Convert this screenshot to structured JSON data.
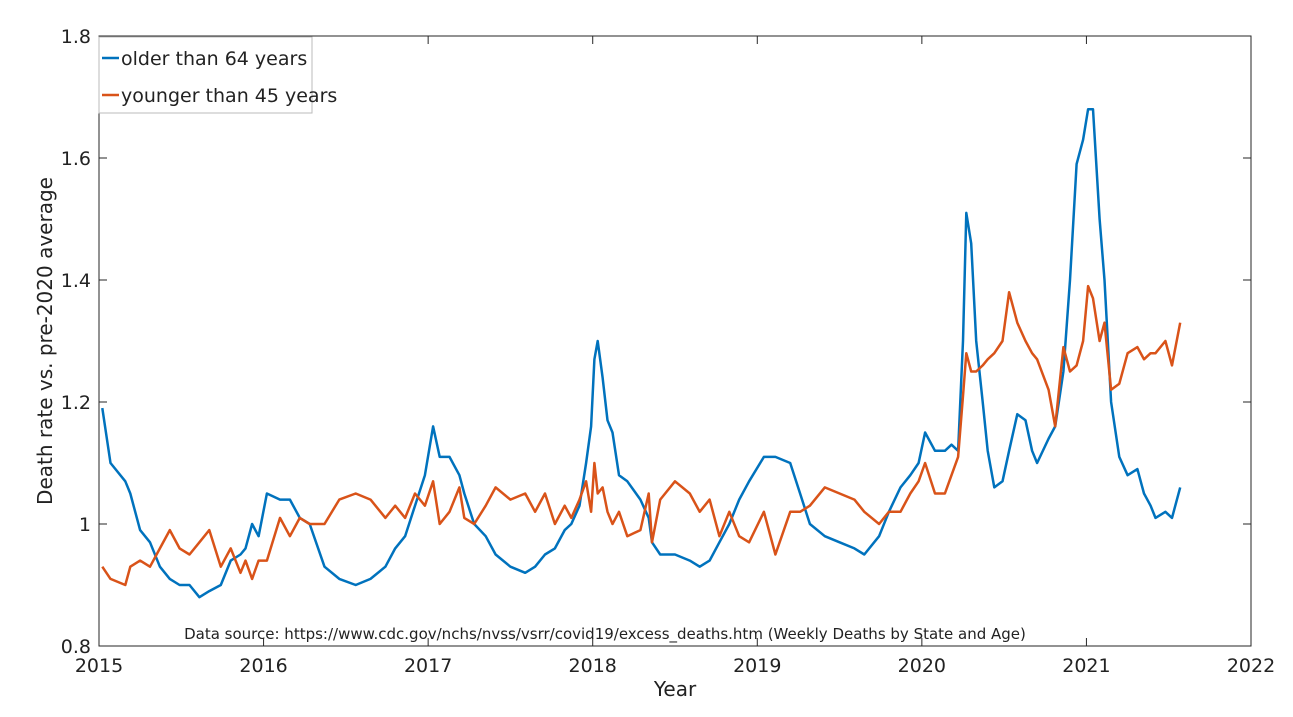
{
  "chart_data": {
    "type": "line",
    "xlabel": "Year",
    "ylabel": "Death rate vs. pre-2020 average",
    "annotation": "Data source: https://www.cdc.gov/nchs/nvss/vsrr/covid19/excess_deaths.htm (Weekly Deaths by State and Age)",
    "x": [
      2015.02,
      2015.07,
      2015.16,
      2015.19,
      2015.25,
      2015.31,
      2015.37,
      2015.43,
      2015.49,
      2015.55,
      2015.61,
      2015.67,
      2015.74,
      2015.8,
      2015.86,
      2015.89,
      2015.93,
      2015.97,
      2016.02,
      2016.1,
      2016.16,
      2016.22,
      2016.28,
      2016.37,
      2016.46,
      2016.56,
      2016.65,
      2016.74,
      2016.8,
      2016.86,
      2016.92,
      2016.98,
      2017.03,
      2017.07,
      2017.13,
      2017.19,
      2017.22,
      2017.28,
      2017.35,
      2017.41,
      2017.5,
      2017.59,
      2017.65,
      2017.71,
      2017.77,
      2017.83,
      2017.87,
      2017.92,
      2017.96,
      2017.99,
      2018.01,
      2018.03,
      2018.06,
      2018.09,
      2018.12,
      2018.16,
      2018.21,
      2018.29,
      2018.34,
      2018.36,
      2018.41,
      2018.5,
      2018.59,
      2018.65,
      2018.71,
      2018.77,
      2018.83,
      2018.89,
      2018.95,
      2019.04,
      2019.11,
      2019.2,
      2019.26,
      2019.32,
      2019.41,
      2019.5,
      2019.59,
      2019.65,
      2019.74,
      2019.8,
      2019.87,
      2019.93,
      2019.98,
      2020.02,
      2020.08,
      2020.14,
      2020.18,
      2020.22,
      2020.25,
      2020.27,
      2020.3,
      2020.33,
      2020.37,
      2020.4,
      2020.44,
      2020.49,
      2020.53,
      2020.58,
      2020.63,
      2020.67,
      2020.7,
      2020.77,
      2020.81,
      2020.86,
      2020.9,
      2020.94,
      2020.98,
      2021.01,
      2021.04,
      2021.08,
      2021.11,
      2021.15,
      2021.2,
      2021.25,
      2021.31,
      2021.35,
      2021.39,
      2021.42,
      2021.48,
      2021.52,
      2021.57
    ],
    "series": [
      {
        "name": "older than 64 years",
        "color": "#0072bd",
        "values": [
          1.19,
          1.1,
          1.07,
          1.05,
          0.99,
          0.97,
          0.93,
          0.91,
          0.9,
          0.9,
          0.88,
          0.89,
          0.9,
          0.94,
          0.95,
          0.96,
          1.0,
          0.98,
          1.05,
          1.04,
          1.04,
          1.01,
          1.0,
          0.93,
          0.91,
          0.9,
          0.91,
          0.93,
          0.96,
          0.98,
          1.03,
          1.08,
          1.16,
          1.11,
          1.11,
          1.08,
          1.05,
          1.0,
          0.98,
          0.95,
          0.93,
          0.92,
          0.93,
          0.95,
          0.96,
          0.99,
          1.0,
          1.03,
          1.1,
          1.16,
          1.27,
          1.3,
          1.24,
          1.17,
          1.15,
          1.08,
          1.07,
          1.04,
          1.01,
          0.97,
          0.95,
          0.95,
          0.94,
          0.93,
          0.94,
          0.97,
          1.0,
          1.04,
          1.07,
          1.11,
          1.11,
          1.1,
          1.05,
          1.0,
          0.98,
          0.97,
          0.96,
          0.95,
          0.98,
          1.02,
          1.06,
          1.08,
          1.1,
          1.15,
          1.12,
          1.12,
          1.13,
          1.12,
          1.3,
          1.51,
          1.46,
          1.3,
          1.2,
          1.12,
          1.06,
          1.07,
          1.12,
          1.18,
          1.17,
          1.12,
          1.1,
          1.14,
          1.16,
          1.25,
          1.4,
          1.59,
          1.63,
          1.68,
          1.68,
          1.5,
          1.4,
          1.2,
          1.11,
          1.08,
          1.09,
          1.05,
          1.03,
          1.01,
          1.02,
          1.01,
          1.06
        ]
      },
      {
        "name": "younger than 45 years",
        "color": "#d95319",
        "values": [
          0.93,
          0.91,
          0.9,
          0.93,
          0.94,
          0.93,
          0.96,
          0.99,
          0.96,
          0.95,
          0.97,
          0.99,
          0.93,
          0.96,
          0.92,
          0.94,
          0.91,
          0.94,
          0.94,
          1.01,
          0.98,
          1.01,
          1.0,
          1.0,
          1.04,
          1.05,
          1.04,
          1.01,
          1.03,
          1.01,
          1.05,
          1.03,
          1.07,
          1.0,
          1.02,
          1.06,
          1.01,
          1.0,
          1.03,
          1.06,
          1.04,
          1.05,
          1.02,
          1.05,
          1.0,
          1.03,
          1.01,
          1.04,
          1.07,
          1.02,
          1.1,
          1.05,
          1.06,
          1.02,
          1.0,
          1.02,
          0.98,
          0.99,
          1.05,
          0.97,
          1.04,
          1.07,
          1.05,
          1.02,
          1.04,
          0.98,
          1.02,
          0.98,
          0.97,
          1.02,
          0.95,
          1.02,
          1.02,
          1.03,
          1.06,
          1.05,
          1.04,
          1.02,
          1.0,
          1.02,
          1.02,
          1.05,
          1.07,
          1.1,
          1.05,
          1.05,
          1.08,
          1.11,
          1.21,
          1.28,
          1.25,
          1.25,
          1.26,
          1.27,
          1.28,
          1.3,
          1.38,
          1.33,
          1.3,
          1.28,
          1.27,
          1.22,
          1.16,
          1.29,
          1.25,
          1.26,
          1.3,
          1.39,
          1.37,
          1.3,
          1.33,
          1.22,
          1.23,
          1.28,
          1.29,
          1.27,
          1.28,
          1.28,
          1.3,
          1.26,
          1.33
        ]
      }
    ],
    "xlim": [
      2015,
      2022
    ],
    "xticks": [
      2015,
      2016,
      2017,
      2018,
      2019,
      2020,
      2021,
      2022
    ],
    "ylim": [
      0.8,
      1.8
    ],
    "yticks": [
      0.8,
      1,
      1.2,
      1.4,
      1.6,
      1.8
    ],
    "grid": false,
    "legend": "upper left"
  }
}
